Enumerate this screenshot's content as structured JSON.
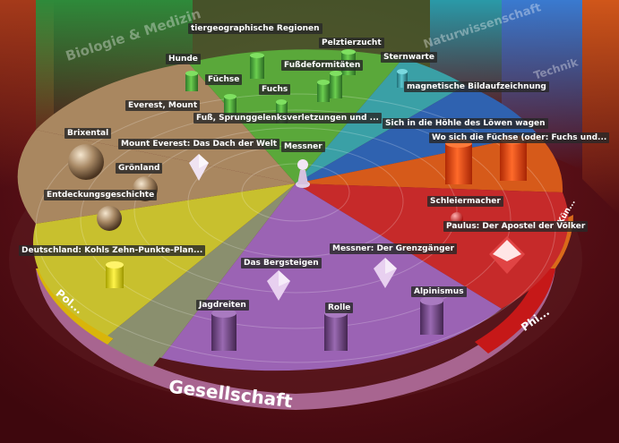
{
  "rim": {
    "bottom": "Gesellschaft",
    "left": "Pol...",
    "right": "Phi...",
    "right_small": "Kün..."
  },
  "banners": {
    "top_left": "Biologie & Medizin",
    "top_right": "Naturwissenschaft",
    "far_right": "Technik"
  },
  "labels": {
    "tiergeo": "tiergeographische Regionen",
    "pelztier": "Pelztierzucht",
    "hunde": "Hunde",
    "sternwarte": "Sternwarte",
    "fussdef": "Fußdeformitäten",
    "fuechse": "Füchse",
    "magnet": "magnetische Bildaufzeichnung",
    "fuchs": "Fuchs",
    "everest": "Everest, Mount",
    "fuss": "Fuß, Sprunggelenksverletzungen und ...",
    "hoehle": "Sich in die Höhle des Löwen wagen",
    "brixental": "Brixental",
    "everest_dach": "Mount Everest: Das Dach der Welt",
    "wo_fuechse": "Wo sich die Füchse (oder: Fuchs und...",
    "messner": "Messner",
    "groenland": "Grönland",
    "entdeckung": "Entdeckungsgeschichte",
    "schleier": "Schleiermacher",
    "paulus": "Paulus: Der Apostel der Völker",
    "deutschland": "Deutschland: Kohls Zehn-Punkte-Plan...",
    "grenz": "Messner: Der Grenzgänger",
    "bergsteigen": "Das Bergsteigen",
    "alpinismus": "Alpinismus",
    "jagdreiten": "Jagdreiten",
    "rolle": "Rolle"
  },
  "colors": {
    "background": "#4a0b12",
    "biology_green": "#5aa83a",
    "nature_teal": "#3aa0a6",
    "tech_blue": "#2f62b0",
    "orange": "#d65a1a",
    "red": "#c62a2a",
    "purple": "#9b63b4",
    "tan": "#a98760",
    "yellow": "#c8c02e",
    "gray": "#8a8f6e",
    "rim_yellow": "#d9b50a",
    "rim_red": "#c61818",
    "rim_purple": "#a86590"
  },
  "icons": {
    "center": "pawn-icon",
    "cylinder": "cylinder-icon",
    "sphere": "sphere-icon",
    "crystal": "octahedron-icon"
  }
}
